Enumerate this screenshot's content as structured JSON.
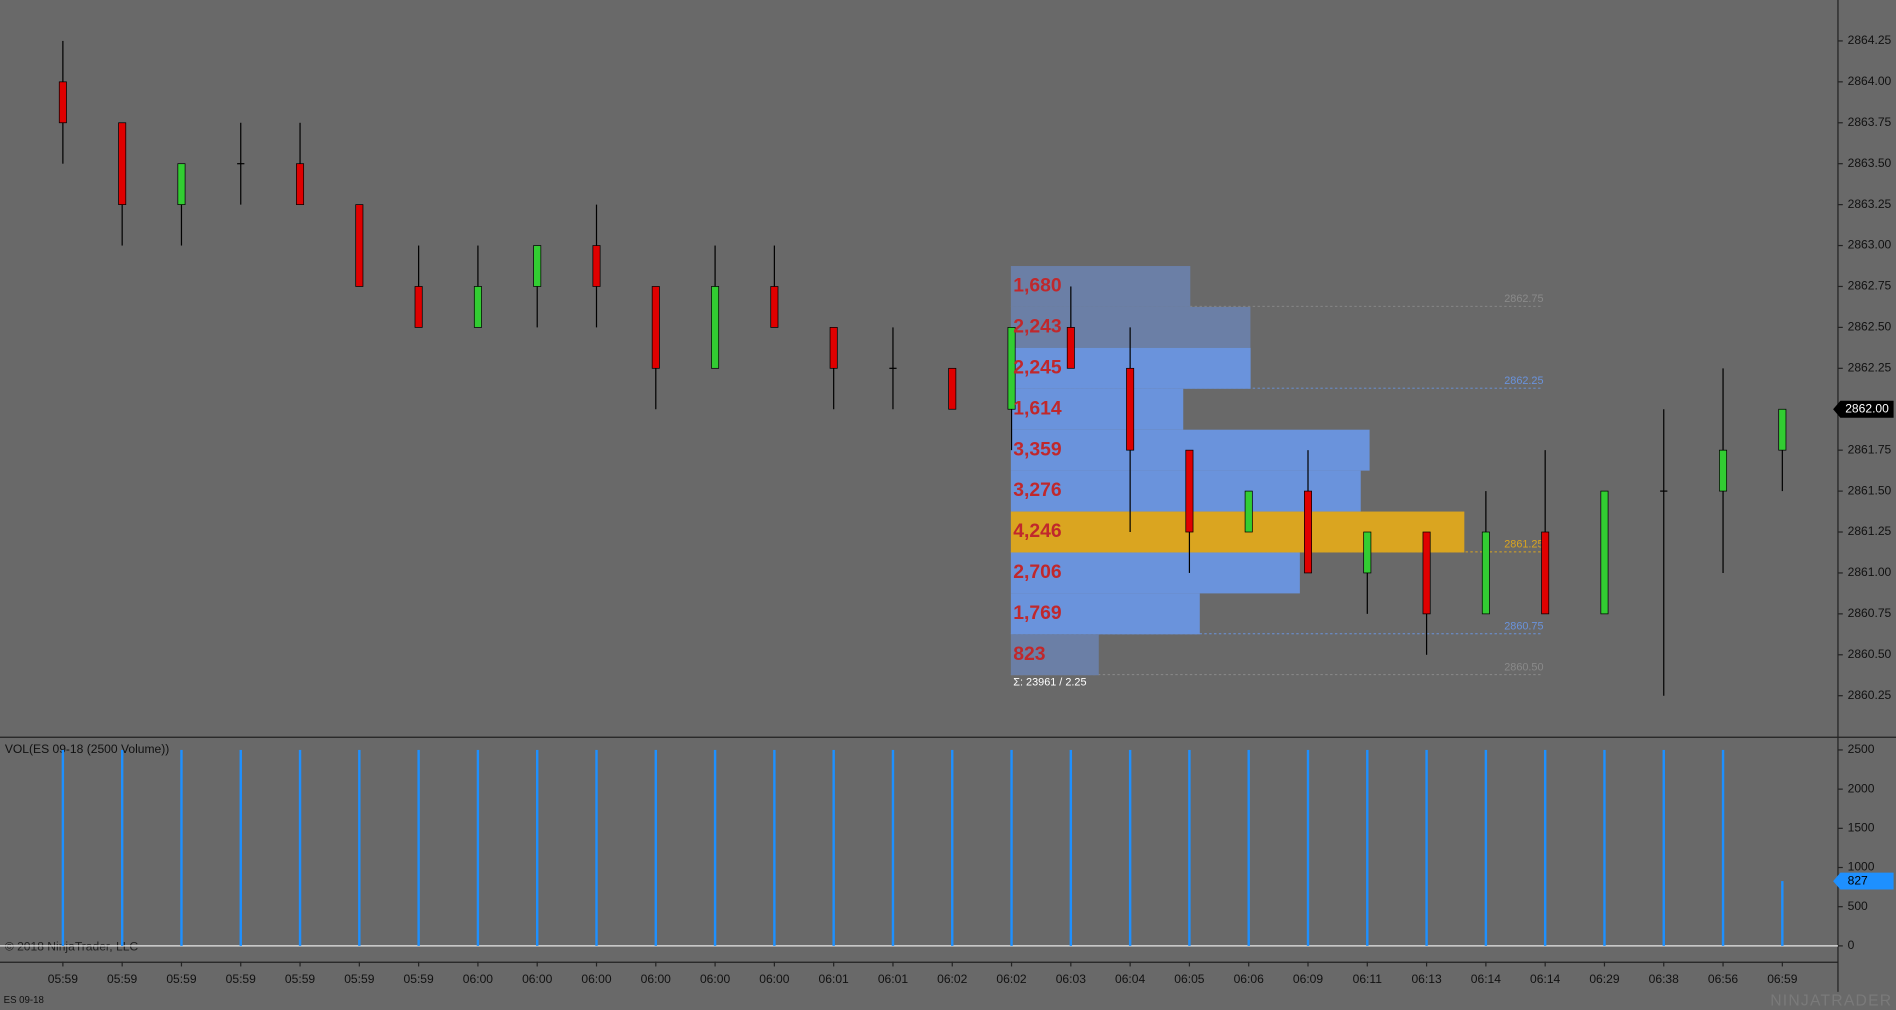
{
  "chart_data": [
    {
      "type": "candlestick",
      "categories": [
        "05:59",
        "05:59",
        "05:59",
        "05:59",
        "05:59",
        "05:59",
        "05:59",
        "06:00",
        "06:00",
        "06:00",
        "06:00",
        "06:00",
        "06:00",
        "06:01",
        "06:01",
        "06:02",
        "06:02",
        "06:03",
        "06:04",
        "06:05",
        "06:06",
        "06:09",
        "06:11",
        "06:13",
        "06:14",
        "06:14",
        "06:29",
        "06:38",
        "06:56",
        "06:59"
      ],
      "open": [
        2864.0,
        2863.75,
        2863.25,
        2863.5,
        2863.5,
        2863.25,
        2862.75,
        2862.5,
        2862.75,
        2863.0,
        2862.75,
        2862.25,
        2862.75,
        2862.5,
        2862.25,
        2862.25,
        2862.0,
        2862.5,
        2862.25,
        2861.75,
        2861.25,
        2861.5,
        2861.0,
        2861.25,
        2860.75,
        2861.25,
        2860.75,
        2861.5,
        2861.5,
        2861.75
      ],
      "high": [
        2864.25,
        2863.75,
        2863.5,
        2863.75,
        2863.75,
        2863.25,
        2863.0,
        2863.0,
        2863.0,
        2863.25,
        2862.75,
        2863.0,
        2863.0,
        2862.5,
        2862.5,
        2862.25,
        2862.5,
        2862.75,
        2862.5,
        2861.75,
        2861.5,
        2861.75,
        2861.25,
        2861.25,
        2861.5,
        2861.75,
        2861.5,
        2862.0,
        2862.25,
        2862.0
      ],
      "low": [
        2863.5,
        2863.0,
        2863.0,
        2863.25,
        2863.25,
        2862.75,
        2862.5,
        2862.5,
        2862.5,
        2862.5,
        2862.0,
        2862.25,
        2862.5,
        2862.0,
        2862.0,
        2862.0,
        2861.75,
        2862.25,
        2861.25,
        2861.0,
        2861.25,
        2861.0,
        2860.75,
        2860.5,
        2860.75,
        2860.75,
        2860.75,
        2860.25,
        2861.0,
        2861.5
      ],
      "close": [
        2863.75,
        2863.25,
        2863.5,
        2863.5,
        2863.25,
        2862.75,
        2862.5,
        2862.75,
        2863.0,
        2862.75,
        2862.25,
        2862.75,
        2862.5,
        2862.25,
        2862.25,
        2862.0,
        2862.5,
        2862.25,
        2861.75,
        2861.25,
        2861.5,
        2861.0,
        2861.25,
        2860.75,
        2861.25,
        2860.75,
        2861.5,
        2861.5,
        2861.75,
        2862.0
      ],
      "up_color": "#32cd32",
      "down_color": "#e00000",
      "wick_color": "#000000",
      "ylim": [
        2860.0,
        2864.5
      ],
      "yticks": [
        2860.25,
        {
          "value": 2860.5,
          "label": "2860.50"
        },
        2860.75,
        {
          "value": 2861,
          "label": "2861.00"
        },
        2861.25,
        {
          "value": 2861.5,
          "label": "2861.50"
        },
        2861.75,
        {
          "value": 2862,
          "label": "2862.00"
        },
        2862.25,
        {
          "value": 2862.5,
          "label": "2862.50"
        },
        2862.75,
        {
          "value": 2863,
          "label": "2863.00"
        },
        2863.25,
        {
          "value": 2863.5,
          "label": "2863.50"
        },
        2863.75,
        {
          "value": 2864,
          "label": "2864.00"
        },
        2864.25
      ],
      "last_price_label": "2862.00",
      "profile": {
        "levels": [
          2862.75,
          2862.5,
          2862.25,
          2862.0,
          2861.75,
          2861.5,
          2861.25,
          2861.0,
          2860.75,
          2860.5
        ],
        "values": [
          1680,
          2243,
          2245,
          1614,
          3359,
          3276,
          4246,
          2706,
          1769,
          823
        ],
        "value_labels": [
          "1,680",
          "2,243",
          "2,245",
          "1,614",
          "3,359",
          "3,276",
          "4,246",
          "2,706",
          "1,769",
          "823"
        ],
        "poc": 2861.25,
        "vah": 2862.25,
        "val": 2860.75,
        "va_color": "#6a93dc",
        "outer_color": "#6b7fa6",
        "poc_color": "#daa520",
        "label_color": "#c0282c",
        "summary": "Σ: 23961 / 2.25",
        "marker_lines": [
          {
            "value": 2862.75,
            "label": "2862.75"
          },
          {
            "value": 2862.25,
            "label": "2862.25"
          },
          {
            "value": 2861.25,
            "label": "2861.25"
          },
          {
            "value": 2860.75,
            "label": "2860.75"
          },
          {
            "value": 2860.5,
            "label": "2860.50"
          }
        ],
        "marker_line_colors": [
          "#8a8a8a",
          "#6a93dc",
          "#daa520",
          "#6a93dc",
          "#8a8a8a"
        ]
      }
    },
    {
      "type": "bar",
      "title": "VOL(ES 09-18 (2500 Volume))",
      "values": [
        2500,
        2500,
        2500,
        2500,
        2500,
        2500,
        2500,
        2500,
        2500,
        2500,
        2500,
        2500,
        2500,
        2500,
        2500,
        2500,
        2500,
        2500,
        2500,
        2500,
        2500,
        2500,
        2500,
        2500,
        2500,
        2500,
        2500,
        2500,
        2500,
        827
      ],
      "color": "#1e90ff",
      "ylim": [
        0,
        2500
      ],
      "yticks": [
        0,
        500,
        1000,
        1500,
        2000,
        2500
      ]
    }
  ],
  "copyright": "© 2018 NinjaTrader, LLC",
  "instrument": "ES 09-18",
  "watermark": "NINJATRADER"
}
